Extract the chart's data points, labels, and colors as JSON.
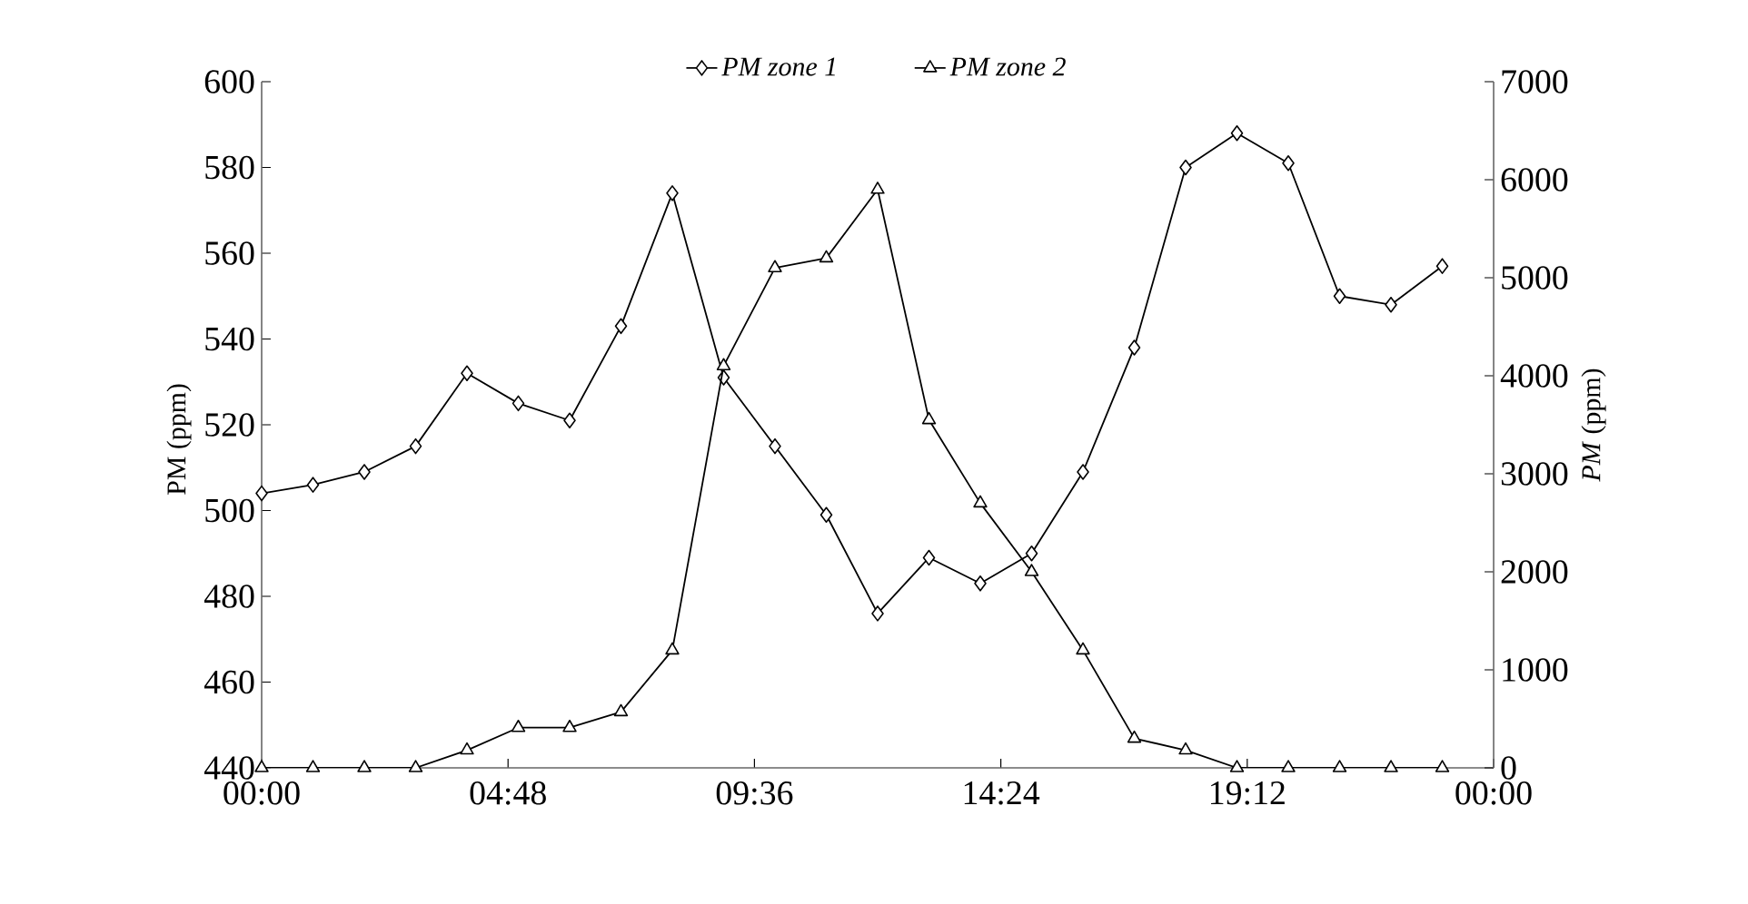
{
  "chart_data": {
    "type": "line",
    "ylabel": "PM (ppm)",
    "y2label": "*PM* (ppm)",
    "x": [
      0,
      1,
      2,
      3,
      4,
      5,
      6,
      7,
      8,
      9,
      10,
      11,
      12,
      13,
      14,
      15,
      16,
      17,
      18,
      19,
      20,
      21,
      22,
      23
    ],
    "xlim": [
      0,
      24
    ],
    "xticks": [
      {
        "value": 0,
        "label": "00:00"
      },
      {
        "value": 4.8,
        "label": "04:48"
      },
      {
        "value": 9.6,
        "label": "09:36"
      },
      {
        "value": 14.4,
        "label": "14:24"
      },
      {
        "value": 19.2,
        "label": "19:12"
      },
      {
        "value": 24,
        "label": "00:00"
      }
    ],
    "ylim": [
      440,
      600
    ],
    "yticks": [
      440,
      460,
      480,
      500,
      520,
      540,
      560,
      580,
      600
    ],
    "y2lim": [
      0,
      7000
    ],
    "y2ticks": [
      0,
      1000,
      2000,
      3000,
      4000,
      5000,
      6000,
      7000
    ],
    "series": [
      {
        "name": "PM zone 1",
        "color": "#000000",
        "marker": "diamond",
        "values": [
          504,
          506,
          509,
          515,
          532,
          525,
          521,
          543,
          574,
          531,
          515,
          499,
          476,
          489,
          483,
          490,
          509,
          538,
          580,
          588,
          581,
          550,
          548,
          557
        ]
      },
      {
        "name": "PM zone 2",
        "color": "#000000",
        "marker": "triangle",
        "axis": "y2",
        "values": [
          0,
          0,
          0,
          0,
          180,
          410,
          410,
          570,
          1200,
          4100,
          5100,
          5200,
          5900,
          3550,
          2700,
          2000,
          1200,
          300,
          180,
          0,
          0,
          0,
          0,
          0
        ]
      }
    ],
    "legend": "top",
    "grid": false,
    "line_style": "solid"
  }
}
